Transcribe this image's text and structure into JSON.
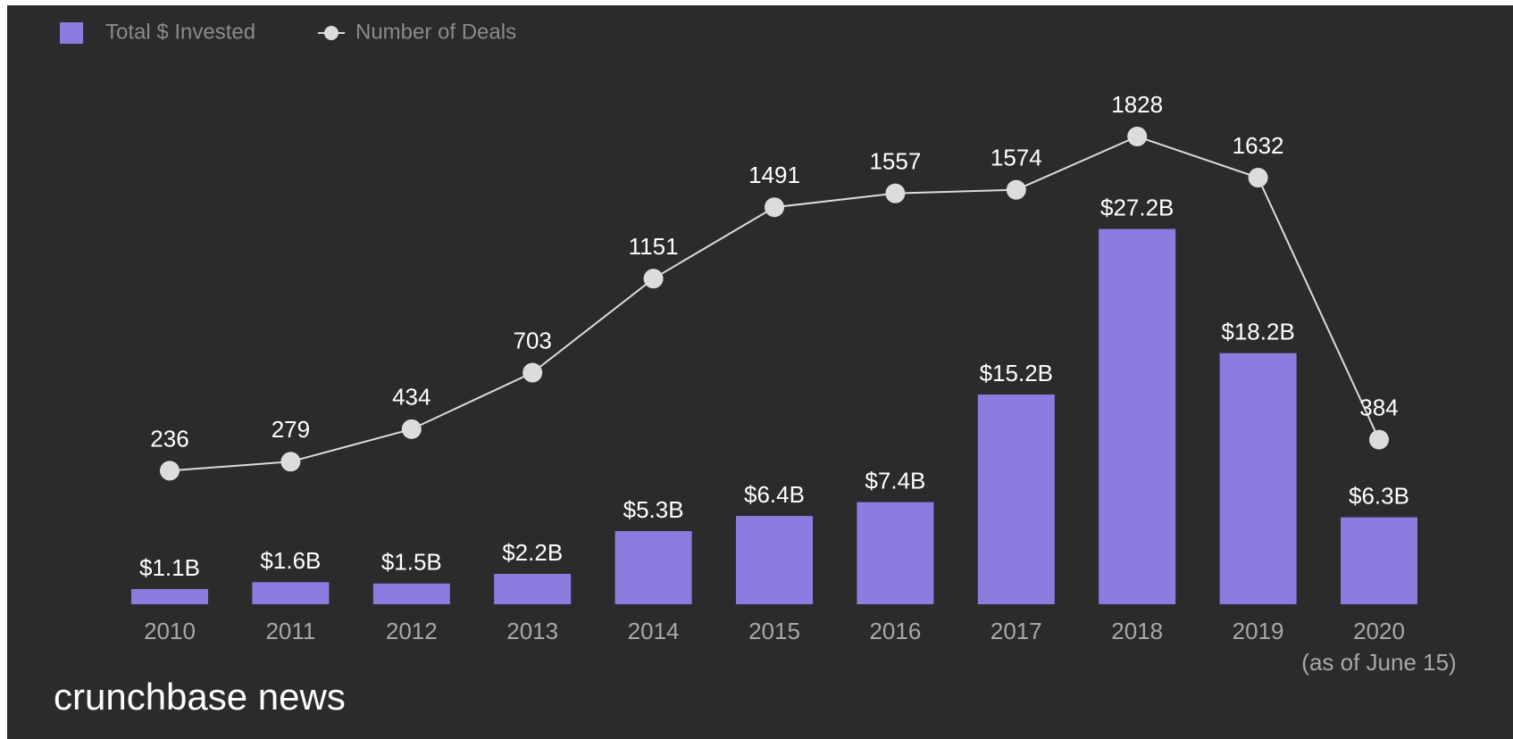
{
  "chart_data": {
    "type": "bar",
    "categories": [
      "2010",
      "2011",
      "2012",
      "2013",
      "2014",
      "2015",
      "2016",
      "2017",
      "2018",
      "2019",
      "2020"
    ],
    "series": [
      {
        "name": "Total $ Invested",
        "type": "bar",
        "color": "#8b7ce0",
        "values": [
          1.1,
          1.6,
          1.5,
          2.2,
          5.3,
          6.4,
          7.4,
          15.2,
          27.2,
          18.2,
          6.3
        ],
        "value_labels": [
          "$1.1B",
          "$1.6B",
          "$1.5B",
          "$2.2B",
          "$5.3B",
          "$6.4B",
          "$7.4B",
          "$15.2B",
          "$27.2B",
          "$18.2B",
          "$6.3B"
        ]
      },
      {
        "name": "Number of Deals",
        "type": "line",
        "axis": "y2",
        "color": "#dcdcdc",
        "values": [
          236,
          279,
          434,
          703,
          1151,
          1491,
          1557,
          1574,
          1828,
          1632,
          384
        ]
      }
    ],
    "ylim": [
      0,
      35
    ],
    "y2lim": [
      -400,
      1900
    ],
    "annotations": [
      "(as of June 15)"
    ],
    "source": "crunchbase news"
  }
}
